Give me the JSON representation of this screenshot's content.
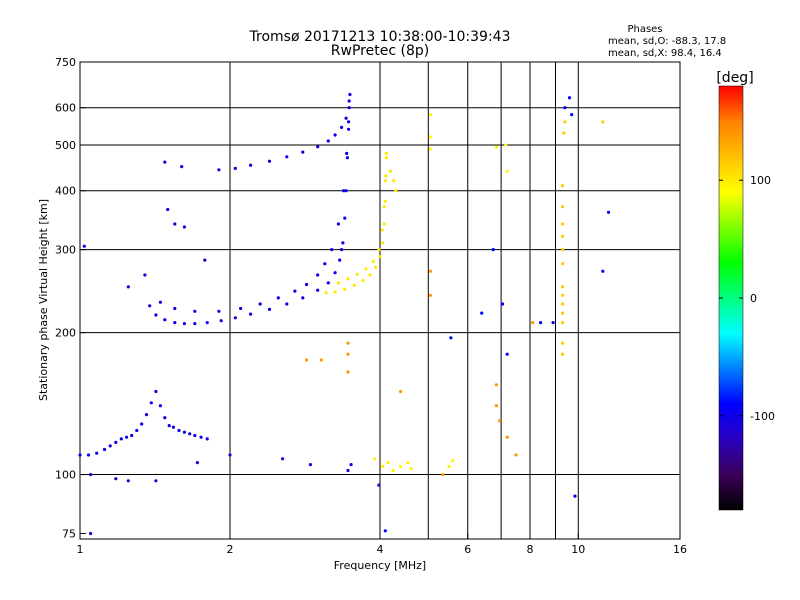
{
  "chart_data": {
    "type": "scatter",
    "title": "Tromsø 20171213 10:38:00-10:39:43",
    "subtitle": "RwPretec (8p)",
    "xlabel": "Frequency [MHz]",
    "ylabel": "Stationary phase Virtual Height [km]",
    "x_scale": "log",
    "y_scale": "log",
    "xlim": [
      1,
      16
    ],
    "ylim": [
      73,
      750
    ],
    "x_ticks": [
      1,
      2,
      4,
      6,
      8,
      10,
      16
    ],
    "y_ticks": [
      75,
      100,
      200,
      300,
      400,
      500,
      600,
      750
    ],
    "x_grid": [
      2,
      4,
      5,
      6,
      7,
      8,
      9,
      10
    ],
    "y_grid": [
      100,
      200,
      300,
      400,
      500,
      600
    ],
    "phase_box": {
      "heading": "Phases",
      "line_o": "mean, sd,O: -88.3, 17.8",
      "line_x": "mean, sd,X:  98.4, 16.4"
    },
    "colorbar": {
      "label": "[deg]",
      "range": [
        -180,
        180
      ],
      "ticks": [
        100,
        0,
        -100
      ],
      "colors": [
        "#000000",
        "#3a0058",
        "#2a00c0",
        "#0000ff",
        "#0080ff",
        "#00ffff",
        "#00ff80",
        "#00ff00",
        "#80ff00",
        "#ffff00",
        "#ffc000",
        "#ff8000",
        "#ff0000"
      ]
    },
    "traces": [
      {
        "kind": "O-low-E",
        "phase": -100,
        "points": [
          [
            1.0,
            110
          ],
          [
            1.04,
            110
          ],
          [
            1.08,
            111
          ],
          [
            1.12,
            113
          ],
          [
            1.15,
            115
          ],
          [
            1.18,
            117
          ],
          [
            1.21,
            119
          ],
          [
            1.24,
            120
          ],
          [
            1.27,
            121
          ],
          [
            1.3,
            124
          ],
          [
            1.33,
            128
          ],
          [
            1.36,
            134
          ],
          [
            1.39,
            142
          ],
          [
            1.42,
            150
          ],
          [
            1.45,
            140
          ],
          [
            1.48,
            132
          ],
          [
            1.51,
            127
          ],
          [
            1.54,
            126
          ],
          [
            1.58,
            124
          ],
          [
            1.62,
            123
          ],
          [
            1.66,
            122
          ],
          [
            1.7,
            121
          ],
          [
            1.75,
            120
          ],
          [
            1.8,
            119
          ]
        ]
      },
      {
        "kind": "O-F",
        "phase": -100,
        "points": [
          [
            1.38,
            228
          ],
          [
            1.42,
            218
          ],
          [
            1.48,
            213
          ],
          [
            1.55,
            210
          ],
          [
            1.62,
            209
          ],
          [
            1.7,
            209
          ],
          [
            1.8,
            210
          ],
          [
            1.92,
            212
          ],
          [
            2.05,
            215
          ],
          [
            2.2,
            219
          ],
          [
            2.4,
            224
          ],
          [
            2.6,
            230
          ],
          [
            2.8,
            237
          ],
          [
            3.0,
            246
          ],
          [
            3.15,
            255
          ],
          [
            3.25,
            268
          ],
          [
            3.32,
            285
          ],
          [
            3.37,
            310
          ],
          [
            3.4,
            350
          ],
          [
            3.42,
            400
          ],
          [
            3.44,
            470
          ],
          [
            3.46,
            540
          ],
          [
            3.47,
            600
          ],
          [
            3.48,
            640
          ]
        ]
      },
      {
        "kind": "O-F-upper",
        "phase": -100,
        "points": [
          [
            1.45,
            232
          ],
          [
            1.55,
            225
          ],
          [
            1.7,
            222
          ],
          [
            1.9,
            222
          ],
          [
            2.1,
            225
          ],
          [
            2.3,
            230
          ],
          [
            2.5,
            237
          ],
          [
            2.7,
            245
          ],
          [
            2.85,
            253
          ],
          [
            3.0,
            265
          ],
          [
            3.1,
            280
          ],
          [
            3.2,
            300
          ],
          [
            3.3,
            340
          ],
          [
            3.38,
            400
          ],
          [
            3.43,
            480
          ],
          [
            3.46,
            560
          ],
          [
            3.47,
            620
          ]
        ]
      },
      {
        "kind": "O-F-high",
        "phase": -100,
        "points": [
          [
            1.9,
            443
          ],
          [
            2.05,
            446
          ],
          [
            2.2,
            453
          ],
          [
            2.4,
            462
          ],
          [
            2.6,
            472
          ],
          [
            2.8,
            483
          ],
          [
            3.0,
            496
          ],
          [
            3.15,
            510
          ],
          [
            3.25,
            525
          ],
          [
            3.35,
            545
          ],
          [
            3.42,
            570
          ]
        ]
      },
      {
        "kind": "X-F",
        "phase": 100,
        "points": [
          [
            3.12,
            243
          ],
          [
            3.25,
            244
          ],
          [
            3.4,
            247
          ],
          [
            3.55,
            252
          ],
          [
            3.7,
            258
          ],
          [
            3.82,
            265
          ],
          [
            3.92,
            275
          ],
          [
            4.0,
            290
          ],
          [
            4.05,
            310
          ],
          [
            4.08,
            340
          ],
          [
            4.1,
            380
          ],
          [
            4.11,
            430
          ],
          [
            4.12,
            480
          ]
        ]
      },
      {
        "kind": "X-F-upper",
        "phase": 100,
        "points": [
          [
            3.3,
            255
          ],
          [
            3.45,
            260
          ],
          [
            3.6,
            266
          ],
          [
            3.75,
            273
          ],
          [
            3.88,
            283
          ],
          [
            3.98,
            300
          ],
          [
            4.04,
            330
          ],
          [
            4.08,
            370
          ],
          [
            4.1,
            420
          ],
          [
            4.12,
            470
          ]
        ]
      },
      {
        "kind": "X-F-high",
        "phase": 100,
        "points": [
          [
            4.2,
            440
          ],
          [
            4.26,
            420
          ],
          [
            4.3,
            400
          ]
        ]
      },
      {
        "kind": "O-scatter",
        "phase": -110,
        "points": [
          [
            1.02,
            305
          ],
          [
            1.25,
            250
          ],
          [
            1.35,
            265
          ],
          [
            1.5,
            365
          ],
          [
            1.55,
            340
          ],
          [
            1.62,
            335
          ],
          [
            1.48,
            460
          ],
          [
            1.6,
            450
          ],
          [
            1.78,
            285
          ],
          [
            2.0,
            110
          ],
          [
            2.55,
            108
          ],
          [
            2.9,
            105
          ],
          [
            3.35,
            300
          ],
          [
            1.25,
            97
          ],
          [
            1.18,
            98
          ],
          [
            1.05,
            100
          ],
          [
            1.42,
            97
          ],
          [
            1.72,
            106
          ],
          [
            3.45,
            102
          ],
          [
            3.5,
            105
          ],
          [
            1.05,
            75
          ],
          [
            3.98,
            95
          ]
        ]
      },
      {
        "kind": "X-scatter",
        "phase": 95,
        "points": [
          [
            3.9,
            108
          ],
          [
            4.05,
            104
          ],
          [
            4.15,
            106
          ],
          [
            4.25,
            102
          ],
          [
            4.4,
            104
          ],
          [
            4.55,
            106
          ],
          [
            4.62,
            103
          ],
          [
            5.5,
            104
          ],
          [
            5.6,
            107
          ],
          [
            5.05,
            580
          ],
          [
            5.05,
            520
          ],
          [
            5.05,
            490
          ],
          [
            6.85,
            495
          ],
          [
            7.15,
            500
          ],
          [
            7.2,
            440
          ]
        ]
      },
      {
        "kind": "X-far-scatter",
        "phase": 115,
        "points": [
          [
            9.3,
            410
          ],
          [
            9.3,
            370
          ],
          [
            9.3,
            340
          ],
          [
            9.3,
            320
          ],
          [
            9.3,
            300
          ],
          [
            9.3,
            280
          ],
          [
            9.3,
            250
          ],
          [
            9.3,
            240
          ],
          [
            9.3,
            230
          ],
          [
            9.3,
            220
          ],
          [
            9.3,
            210
          ],
          [
            9.3,
            190
          ],
          [
            9.3,
            180
          ],
          [
            9.35,
            530
          ],
          [
            9.4,
            560
          ],
          [
            11.2,
            560
          ]
        ]
      },
      {
        "kind": "O-far-scatter",
        "phase": -90,
        "points": [
          [
            9.4,
            600
          ],
          [
            9.6,
            630
          ],
          [
            9.7,
            580
          ],
          [
            7.2,
            180
          ],
          [
            7.05,
            230
          ],
          [
            6.4,
            220
          ],
          [
            8.4,
            210
          ],
          [
            8.9,
            210
          ],
          [
            5.55,
            195
          ],
          [
            6.75,
            300
          ],
          [
            11.5,
            360
          ],
          [
            11.2,
            270
          ],
          [
            9.85,
            90
          ],
          [
            4.1,
            76
          ]
        ]
      },
      {
        "kind": "warm-scatter",
        "phase": 140,
        "points": [
          [
            3.45,
            190
          ],
          [
            3.45,
            180
          ],
          [
            3.45,
            165
          ],
          [
            3.05,
            175
          ],
          [
            2.85,
            175
          ],
          [
            4.4,
            150
          ],
          [
            5.05,
            240
          ],
          [
            5.05,
            270
          ],
          [
            6.85,
            155
          ],
          [
            6.85,
            140
          ],
          [
            6.95,
            130
          ],
          [
            7.5,
            110
          ],
          [
            7.2,
            120
          ],
          [
            5.35,
            100
          ],
          [
            8.1,
            210
          ]
        ]
      }
    ]
  }
}
